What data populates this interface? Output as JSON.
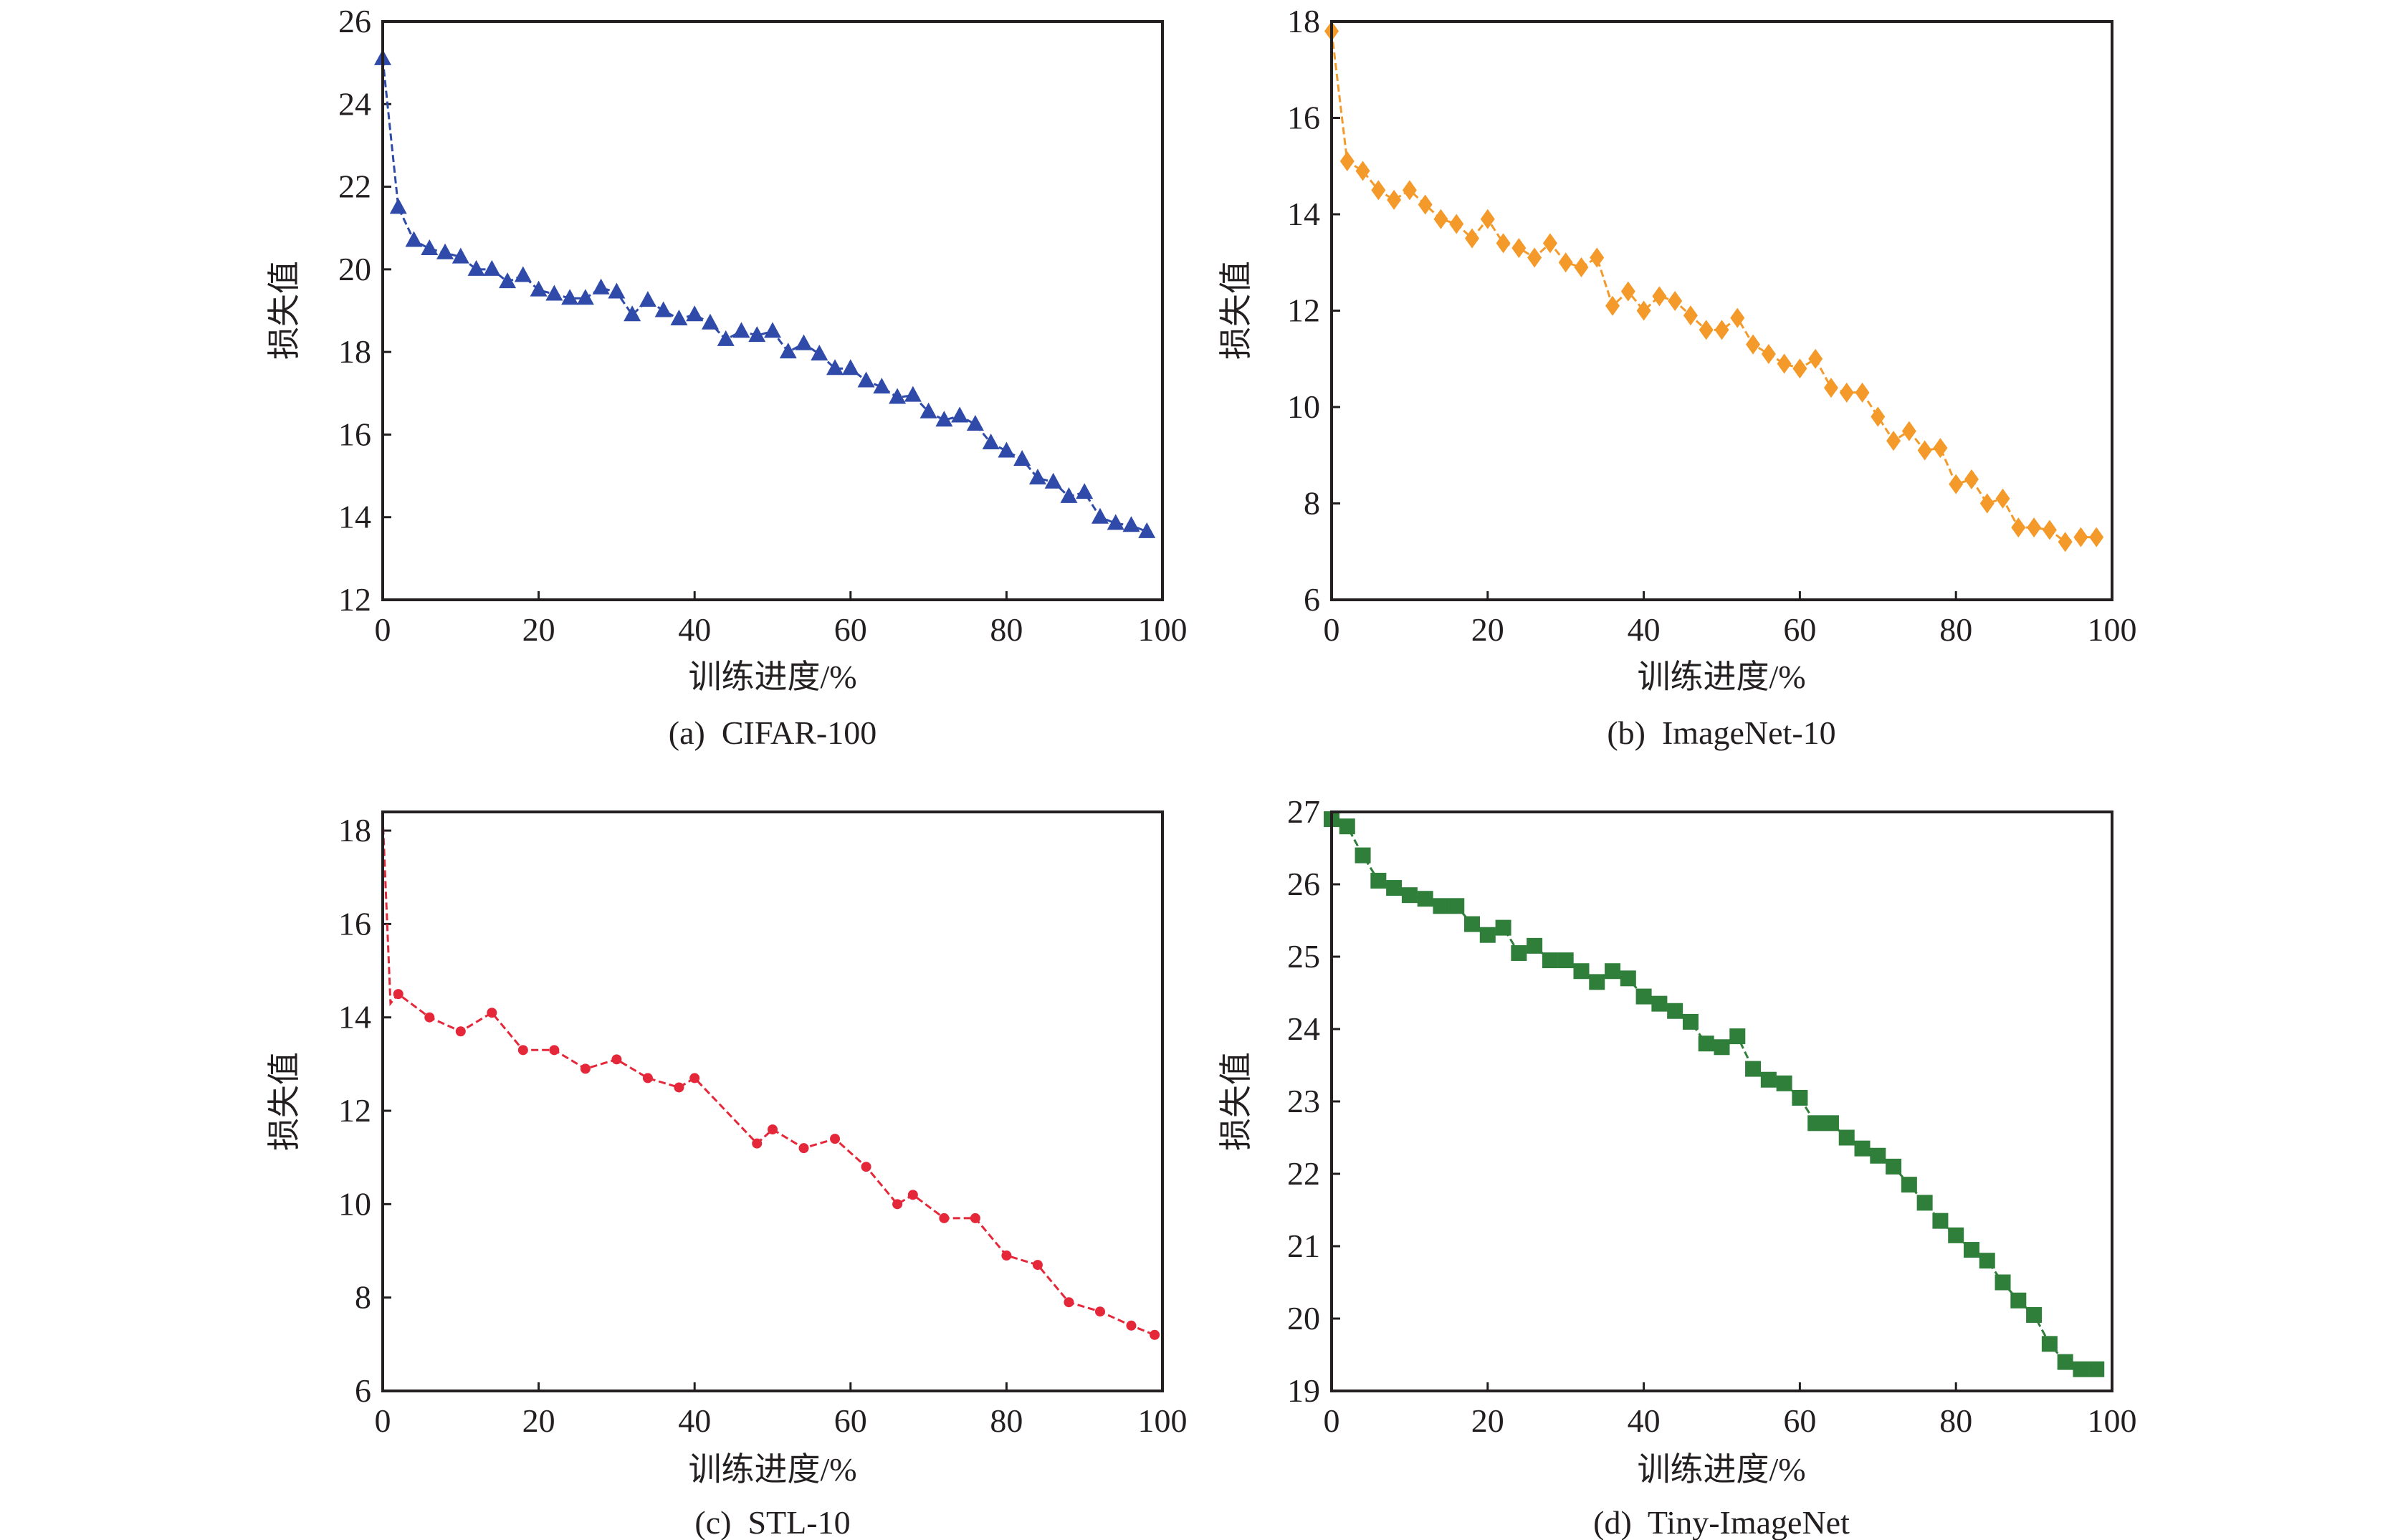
{
  "chart_data": [
    {
      "type": "line",
      "id": "a",
      "caption": "(a)  CIFAR-100",
      "xlabel": "训练进度/%",
      "ylabel": "损失值",
      "xlim": [
        0,
        100
      ],
      "ylim": [
        12,
        26
      ],
      "xticks": [
        0,
        20,
        40,
        60,
        80,
        100
      ],
      "yticks": [
        12,
        14,
        16,
        18,
        20,
        22,
        24,
        26
      ],
      "marker": "triangle",
      "color": "#2f4aa8",
      "line_prefix": [],
      "x": [
        0,
        2,
        4,
        6,
        8,
        10,
        12,
        14,
        16,
        18,
        20,
        22,
        24,
        26,
        28,
        30,
        32,
        34,
        36,
        38,
        40,
        42,
        44,
        46,
        48,
        50,
        52,
        54,
        56,
        58,
        60,
        62,
        64,
        66,
        68,
        70,
        72,
        74,
        76,
        78,
        80,
        82,
        84,
        86,
        88,
        90,
        92,
        94,
        96,
        98
      ],
      "y": [
        25.1,
        21.5,
        20.7,
        20.5,
        20.4,
        20.3,
        20.0,
        20.0,
        19.7,
        19.85,
        19.5,
        19.4,
        19.3,
        19.3,
        19.55,
        19.45,
        18.9,
        19.25,
        19.0,
        18.8,
        18.9,
        18.7,
        18.3,
        18.5,
        18.4,
        18.5,
        18.0,
        18.2,
        17.95,
        17.6,
        17.6,
        17.3,
        17.15,
        16.9,
        16.95,
        16.55,
        16.35,
        16.45,
        16.25,
        15.8,
        15.6,
        15.4,
        14.95,
        14.85,
        14.5,
        14.6,
        14.0,
        13.85,
        13.8,
        13.65
      ]
    },
    {
      "type": "line",
      "id": "b",
      "caption": "(b)  ImageNet-10",
      "xlabel": "训练进度/%",
      "ylabel": "损失值",
      "xlim": [
        0,
        100
      ],
      "ylim": [
        6,
        18
      ],
      "xticks": [
        0,
        20,
        40,
        60,
        80,
        100
      ],
      "yticks": [
        6,
        8,
        10,
        12,
        14,
        16,
        18
      ],
      "marker": "diamond",
      "color": "#f39a2b",
      "line_prefix": [],
      "x": [
        0,
        2,
        4,
        6,
        8,
        10,
        12,
        14,
        16,
        18,
        20,
        22,
        24,
        26,
        28,
        30,
        32,
        34,
        36,
        38,
        40,
        42,
        44,
        46,
        48,
        50,
        52,
        54,
        56,
        58,
        60,
        62,
        64,
        66,
        68,
        70,
        72,
        74,
        76,
        78,
        80,
        82,
        84,
        86,
        88,
        90,
        92,
        94,
        96,
        98
      ],
      "y": [
        17.8,
        15.1,
        14.9,
        14.5,
        14.3,
        14.5,
        14.2,
        13.9,
        13.8,
        13.5,
        13.9,
        13.4,
        13.3,
        13.1,
        13.4,
        13.0,
        12.9,
        13.1,
        12.1,
        12.4,
        12.0,
        12.3,
        12.2,
        11.9,
        11.6,
        11.6,
        11.85,
        11.3,
        11.1,
        10.9,
        10.8,
        11.0,
        10.4,
        10.3,
        10.3,
        9.8,
        9.3,
        9.5,
        9.1,
        9.15,
        8.4,
        8.5,
        8.0,
        8.1,
        7.5,
        7.5,
        7.45,
        7.2,
        7.3,
        7.3
      ]
    },
    {
      "type": "line",
      "id": "c",
      "caption": "(c)  STL-10",
      "xlabel": "训练进度/%",
      "ylabel": "损失值",
      "xlim": [
        0,
        100
      ],
      "ylim": [
        6,
        18.4
      ],
      "xticks": [
        0,
        20,
        40,
        60,
        80,
        100
      ],
      "yticks": [
        6,
        8,
        10,
        12,
        14,
        16,
        18
      ],
      "marker": "circle",
      "color": "#e5273a",
      "line_prefix": [
        [
          0,
          18.3
        ],
        [
          1,
          14.3
        ]
      ],
      "x": [
        2,
        6,
        10,
        14,
        18,
        22,
        26,
        30,
        34,
        38,
        40,
        48,
        50,
        54,
        58,
        62,
        66,
        68,
        72,
        76,
        80,
        84,
        88,
        92,
        96,
        99
      ],
      "y": [
        14.5,
        14.0,
        13.7,
        14.1,
        13.3,
        13.3,
        12.9,
        13.1,
        12.7,
        12.5,
        12.7,
        11.3,
        11.6,
        11.2,
        11.4,
        10.8,
        10.0,
        10.2,
        9.7,
        9.7,
        8.9,
        8.7,
        7.9,
        7.7,
        7.4,
        7.2
      ]
    },
    {
      "type": "line",
      "id": "d",
      "caption": "(d)  Tiny-ImageNet",
      "xlabel": "训练进度/%",
      "ylabel": "损失值",
      "xlim": [
        0,
        100
      ],
      "ylim": [
        19,
        27
      ],
      "xticks": [
        0,
        20,
        40,
        60,
        80,
        100
      ],
      "yticks": [
        19,
        20,
        21,
        22,
        23,
        24,
        25,
        26,
        27
      ],
      "marker": "square",
      "color": "#2f7f3b",
      "line_prefix": [],
      "x": [
        0,
        2,
        4,
        6,
        8,
        10,
        12,
        14,
        16,
        18,
        20,
        22,
        24,
        26,
        28,
        30,
        32,
        34,
        36,
        38,
        40,
        42,
        44,
        46,
        48,
        50,
        52,
        54,
        56,
        58,
        60,
        62,
        64,
        66,
        68,
        70,
        72,
        74,
        76,
        78,
        80,
        82,
        84,
        86,
        88,
        90,
        92,
        94,
        96,
        98
      ],
      "y": [
        26.9,
        26.8,
        26.4,
        26.05,
        25.95,
        25.85,
        25.8,
        25.7,
        25.7,
        25.45,
        25.3,
        25.4,
        25.05,
        25.15,
        24.95,
        24.95,
        24.8,
        24.65,
        24.8,
        24.7,
        24.45,
        24.35,
        24.25,
        24.1,
        23.8,
        23.75,
        23.9,
        23.45,
        23.3,
        23.25,
        23.05,
        22.7,
        22.7,
        22.5,
        22.35,
        22.25,
        22.1,
        21.85,
        21.6,
        21.35,
        21.15,
        20.95,
        20.8,
        20.5,
        20.25,
        20.05,
        19.65,
        19.4,
        19.3,
        19.3
      ]
    }
  ]
}
